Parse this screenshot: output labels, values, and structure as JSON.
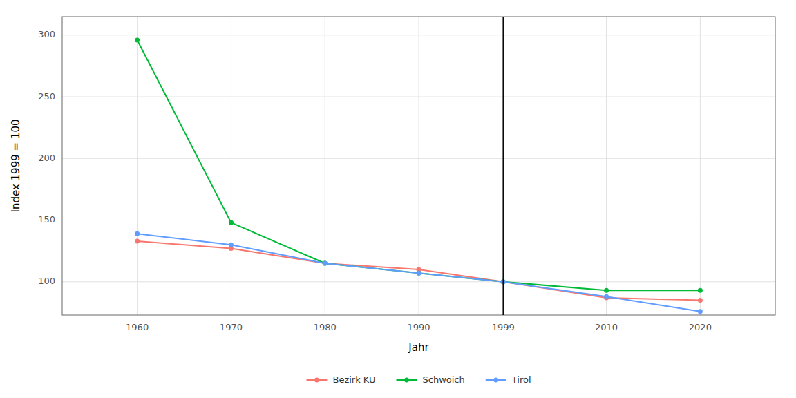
{
  "chart_data": {
    "type": "line",
    "x": [
      1960,
      1970,
      1980,
      1990,
      1999,
      2010,
      2020
    ],
    "series": [
      {
        "name": "Bezirk KU",
        "color": "#F8766D",
        "values": [
          133,
          127,
          115,
          110,
          100,
          87,
          85
        ]
      },
      {
        "name": "Schwoich",
        "color": "#00BA38",
        "values": [
          296,
          148,
          115,
          107,
          100,
          93,
          93
        ]
      },
      {
        "name": "Tirol",
        "color": "#619CFF",
        "values": [
          139,
          130,
          115,
          107,
          100,
          88,
          76
        ]
      }
    ],
    "xlabel": "Jahr",
    "ylabel": "Index 1999 = 100",
    "xlim": [
      1952,
      2028
    ],
    "xticks": [
      1960,
      1970,
      1980,
      1990,
      1999,
      2010,
      2020
    ],
    "ylim": [
      73,
      315
    ],
    "yticks": [
      100,
      150,
      200,
      250,
      300
    ],
    "vline_x": 1999,
    "grid": true,
    "legend": "bottom",
    "marker": "circle"
  }
}
